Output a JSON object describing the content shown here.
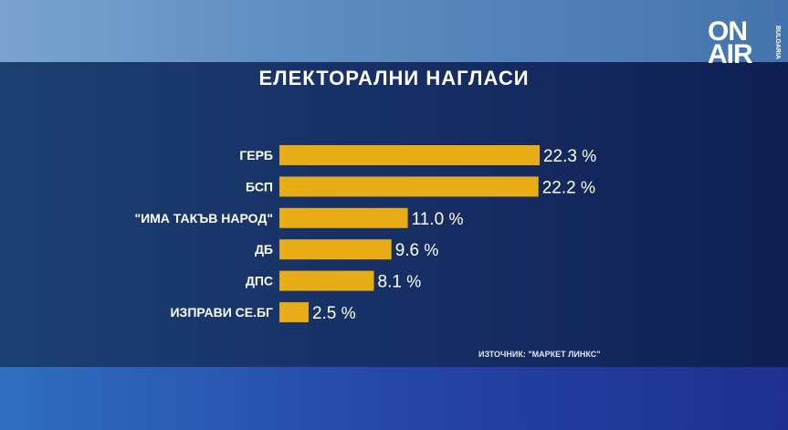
{
  "logo": {
    "text": "ON AIR",
    "sub": "BULGARIA"
  },
  "chart_data": {
    "type": "bar",
    "orientation": "horizontal",
    "title": "ЕЛЕКТОРАЛНИ НАГЛАСИ",
    "categories": [
      "ГЕРБ",
      "БСП",
      "\"ИМА ТАКЪВ НАРОД\"",
      "ДБ",
      "ДПС",
      "ИЗПРАВИ СЕ.БГ"
    ],
    "values": [
      22.3,
      22.2,
      11.0,
      9.6,
      8.1,
      2.5
    ],
    "value_labels": [
      "22.3",
      "22.2",
      "11.0",
      "9.6",
      "8.1",
      "2.5"
    ],
    "unit": "%",
    "bar_color": "#e8ad16",
    "grid": false,
    "source": "ИЗТОЧНИК: \"МАРКЕТ ЛИНКС\""
  }
}
